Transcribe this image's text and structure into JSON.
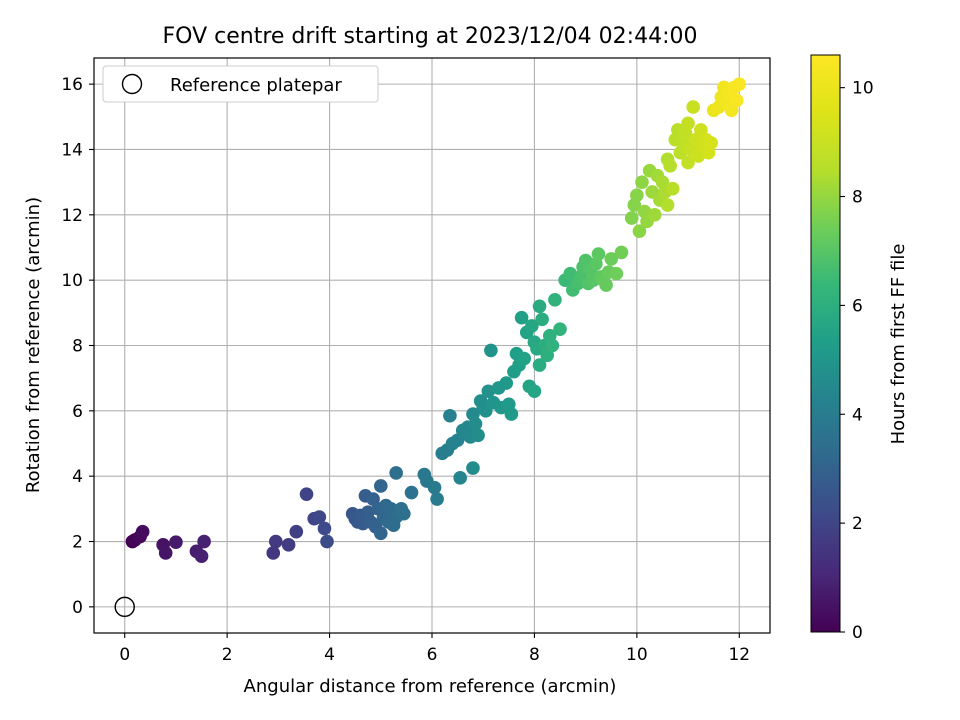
{
  "chart_data": {
    "type": "scatter",
    "title": "FOV centre drift starting at 2023/12/04 02:44:00",
    "xlabel": "Angular distance from reference (arcmin)",
    "ylabel": "Rotation from reference (arcmin)",
    "xlim": [
      -0.6,
      12.6
    ],
    "ylim": [
      -0.8,
      16.8
    ],
    "xticks": [
      0,
      2,
      4,
      6,
      8,
      10,
      12
    ],
    "yticks": [
      0,
      2,
      4,
      6,
      8,
      10,
      12,
      14,
      16
    ],
    "grid": true,
    "legend": {
      "position": "top-left",
      "entries": [
        "Reference platepar"
      ]
    },
    "reference_point": {
      "x": 0,
      "y": 0,
      "label": "Reference platepar"
    },
    "colorbar": {
      "label": "Hours from first FF file",
      "min": 0,
      "max": 10.6,
      "ticks": [
        0,
        2,
        4,
        6,
        8,
        10
      ],
      "colormap": "viridis"
    },
    "series": [
      {
        "points": [
          [
            0.15,
            2.0,
            0.0
          ],
          [
            0.2,
            2.05,
            0.1
          ],
          [
            0.3,
            2.15,
            0.2
          ],
          [
            0.35,
            2.3,
            0.3
          ],
          [
            0.75,
            1.9,
            0.45
          ],
          [
            0.8,
            1.65,
            0.55
          ],
          [
            1.0,
            1.98,
            0.65
          ],
          [
            1.4,
            1.7,
            0.75
          ],
          [
            1.5,
            1.55,
            0.85
          ],
          [
            1.55,
            2.0,
            0.9
          ],
          [
            2.9,
            1.65,
            1.5
          ],
          [
            2.95,
            2.0,
            1.6
          ],
          [
            3.2,
            1.9,
            1.7
          ],
          [
            3.35,
            2.3,
            1.8
          ],
          [
            3.55,
            3.45,
            1.95
          ],
          [
            3.7,
            2.7,
            2.0
          ],
          [
            3.8,
            2.75,
            2.1
          ],
          [
            3.9,
            2.4,
            2.15
          ],
          [
            3.95,
            2.0,
            2.2
          ],
          [
            4.45,
            2.85,
            2.55
          ],
          [
            4.5,
            2.7,
            2.6
          ],
          [
            4.55,
            2.6,
            2.65
          ],
          [
            4.6,
            2.8,
            2.7
          ],
          [
            4.65,
            2.55,
            2.75
          ],
          [
            4.7,
            3.4,
            2.8
          ],
          [
            4.75,
            2.9,
            2.85
          ],
          [
            4.8,
            2.6,
            2.9
          ],
          [
            4.85,
            3.3,
            2.95
          ],
          [
            4.9,
            2.45,
            3.0
          ],
          [
            4.95,
            3.0,
            3.05
          ],
          [
            5.0,
            3.7,
            3.1
          ],
          [
            5.0,
            2.25,
            3.12
          ],
          [
            5.05,
            2.7,
            3.15
          ],
          [
            5.1,
            3.1,
            3.2
          ],
          [
            5.15,
            2.6,
            3.25
          ],
          [
            5.2,
            3.0,
            3.3
          ],
          [
            5.25,
            2.5,
            3.35
          ],
          [
            5.3,
            2.75,
            3.4
          ],
          [
            5.3,
            4.1,
            3.45
          ],
          [
            5.4,
            3.0,
            3.5
          ],
          [
            5.45,
            2.85,
            3.55
          ],
          [
            5.6,
            3.5,
            3.6
          ],
          [
            5.85,
            4.05,
            3.8
          ],
          [
            5.9,
            3.85,
            3.85
          ],
          [
            6.05,
            3.65,
            3.9
          ],
          [
            6.1,
            3.3,
            3.95
          ],
          [
            6.2,
            4.7,
            4.05
          ],
          [
            6.3,
            4.8,
            4.1
          ],
          [
            6.35,
            5.85,
            4.15
          ],
          [
            6.4,
            5.0,
            4.2
          ],
          [
            6.5,
            5.1,
            4.25
          ],
          [
            6.55,
            3.95,
            4.3
          ],
          [
            6.6,
            5.4,
            4.35
          ],
          [
            6.65,
            5.3,
            4.4
          ],
          [
            6.7,
            5.5,
            4.45
          ],
          [
            6.75,
            5.2,
            4.5
          ],
          [
            6.8,
            5.9,
            4.55
          ],
          [
            6.8,
            4.25,
            4.6
          ],
          [
            6.85,
            5.6,
            4.6
          ],
          [
            6.9,
            5.25,
            4.65
          ],
          [
            6.95,
            6.3,
            4.7
          ],
          [
            7.0,
            6.1,
            4.75
          ],
          [
            7.05,
            6.0,
            4.8
          ],
          [
            7.1,
            6.6,
            4.85
          ],
          [
            7.15,
            7.85,
            4.9
          ],
          [
            7.2,
            6.25,
            4.95
          ],
          [
            7.3,
            6.7,
            5.0
          ],
          [
            7.35,
            6.1,
            5.05
          ],
          [
            7.45,
            6.85,
            5.1
          ],
          [
            7.5,
            6.2,
            5.15
          ],
          [
            7.55,
            5.9,
            5.2
          ],
          [
            7.6,
            7.2,
            5.25
          ],
          [
            7.65,
            7.75,
            5.3
          ],
          [
            7.7,
            7.4,
            5.35
          ],
          [
            7.75,
            8.85,
            5.4
          ],
          [
            7.8,
            7.6,
            5.45
          ],
          [
            7.85,
            8.4,
            5.5
          ],
          [
            7.9,
            6.75,
            5.55
          ],
          [
            7.95,
            8.6,
            5.6
          ],
          [
            8.0,
            6.6,
            5.65
          ],
          [
            8.0,
            8.1,
            5.7
          ],
          [
            8.05,
            7.9,
            5.75
          ],
          [
            8.1,
            9.2,
            5.8
          ],
          [
            8.1,
            7.4,
            5.85
          ],
          [
            8.15,
            8.8,
            5.9
          ],
          [
            8.2,
            8.0,
            5.95
          ],
          [
            8.25,
            7.7,
            6.0
          ],
          [
            8.3,
            8.3,
            6.05
          ],
          [
            8.35,
            8.0,
            6.1
          ],
          [
            8.4,
            9.4,
            6.15
          ],
          [
            8.5,
            8.5,
            6.2
          ],
          [
            8.6,
            10.0,
            6.45
          ],
          [
            8.7,
            10.2,
            6.55
          ],
          [
            8.75,
            9.7,
            6.6
          ],
          [
            8.85,
            9.9,
            6.7
          ],
          [
            8.9,
            10.1,
            6.75
          ],
          [
            8.95,
            10.4,
            6.8
          ],
          [
            9.0,
            10.6,
            6.85
          ],
          [
            9.05,
            9.9,
            6.9
          ],
          [
            9.1,
            10.3,
            6.95
          ],
          [
            9.15,
            10.0,
            7.0
          ],
          [
            9.2,
            10.5,
            7.05
          ],
          [
            9.25,
            10.8,
            7.1
          ],
          [
            9.3,
            10.1,
            7.15
          ],
          [
            9.35,
            10.0,
            7.2
          ],
          [
            9.4,
            9.85,
            7.25
          ],
          [
            9.45,
            10.25,
            7.3
          ],
          [
            9.5,
            10.65,
            7.35
          ],
          [
            9.6,
            10.2,
            7.4
          ],
          [
            9.7,
            10.85,
            7.45
          ],
          [
            9.9,
            11.9,
            7.7
          ],
          [
            9.95,
            12.3,
            7.75
          ],
          [
            10.0,
            12.6,
            7.8
          ],
          [
            10.05,
            11.5,
            7.85
          ],
          [
            10.1,
            13.0,
            7.9
          ],
          [
            10.15,
            12.1,
            7.95
          ],
          [
            10.2,
            11.8,
            8.0
          ],
          [
            10.25,
            13.35,
            8.05
          ],
          [
            10.3,
            12.7,
            8.1
          ],
          [
            10.35,
            12.0,
            8.15
          ],
          [
            10.4,
            13.2,
            8.2
          ],
          [
            10.45,
            12.45,
            8.25
          ],
          [
            10.5,
            13.0,
            8.3
          ],
          [
            10.55,
            12.7,
            8.35
          ],
          [
            10.6,
            13.7,
            8.4
          ],
          [
            10.6,
            12.3,
            8.45
          ],
          [
            10.65,
            13.5,
            8.5
          ],
          [
            10.7,
            12.8,
            8.55
          ],
          [
            10.75,
            14.3,
            8.6
          ],
          [
            10.8,
            14.6,
            8.65
          ],
          [
            10.85,
            13.9,
            8.7
          ],
          [
            10.9,
            14.2,
            8.75
          ],
          [
            10.95,
            14.5,
            8.8
          ],
          [
            11.0,
            13.6,
            8.85
          ],
          [
            11.0,
            14.8,
            8.9
          ],
          [
            11.05,
            14.0,
            8.95
          ],
          [
            11.1,
            15.3,
            9.0
          ],
          [
            11.15,
            14.3,
            9.05
          ],
          [
            11.2,
            13.8,
            9.1
          ],
          [
            11.25,
            14.6,
            9.15
          ],
          [
            11.3,
            14.1,
            9.2
          ],
          [
            11.35,
            14.3,
            9.25
          ],
          [
            11.4,
            13.9,
            9.3
          ],
          [
            11.45,
            14.2,
            9.35
          ],
          [
            11.5,
            15.2,
            10.0
          ],
          [
            11.6,
            15.3,
            10.1
          ],
          [
            11.65,
            15.6,
            10.15
          ],
          [
            11.7,
            15.9,
            10.2
          ],
          [
            11.75,
            15.4,
            10.25
          ],
          [
            11.8,
            15.75,
            10.3
          ],
          [
            11.85,
            15.2,
            10.35
          ],
          [
            11.9,
            15.9,
            10.4
          ],
          [
            11.95,
            15.5,
            10.45
          ],
          [
            12.0,
            16.0,
            10.5
          ]
        ]
      }
    ]
  }
}
